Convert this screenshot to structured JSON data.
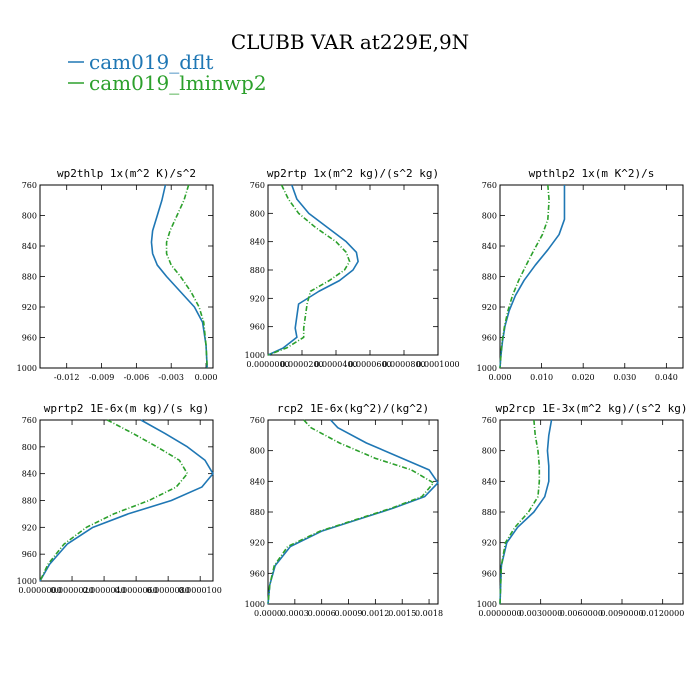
{
  "figure": {
    "title": "CLUBB VAR at229E,9N",
    "legend": [
      {
        "name": "cam019_dflt",
        "color": "#1f77b4"
      },
      {
        "name": "cam019_lminwp2",
        "color": "#2ca02c"
      }
    ]
  },
  "chart_data": [
    {
      "type": "line",
      "title": "wp2thlp  1x(m^2 K)/s^2",
      "xlim": [
        -0.0143,
        0.0006
      ],
      "ylim": [
        760,
        1000
      ],
      "xticks": [
        -0.012,
        -0.009,
        -0.006,
        -0.003,
        0.0
      ],
      "xtick_labels": [
        "-0.012",
        "-0.009",
        "-0.006",
        "-0.003",
        "0.000"
      ],
      "yticks": [
        760,
        800,
        840,
        880,
        920,
        960,
        1000
      ],
      "series": [
        {
          "name": "cam019_dflt",
          "color": "#1f77b4",
          "x": [
            -0.0035,
            -0.0038,
            -0.0042,
            -0.0046,
            -0.0047,
            -0.0046,
            -0.0042,
            -0.0034,
            -0.0022,
            -0.001,
            -0.0003,
            0.0,
            0.0001
          ],
          "y": [
            760,
            780,
            800,
            820,
            835,
            850,
            865,
            880,
            900,
            920,
            940,
            970,
            1000
          ]
        },
        {
          "name": "cam019_lminwp2",
          "color": "#2ca02c",
          "x": [
            -0.0015,
            -0.0019,
            -0.0025,
            -0.0031,
            -0.0034,
            -0.0034,
            -0.003,
            -0.0022,
            -0.0013,
            -0.0006,
            -0.0002,
            0.0,
            0.0001
          ],
          "y": [
            760,
            780,
            800,
            820,
            835,
            850,
            865,
            880,
            900,
            920,
            940,
            970,
            1000
          ]
        }
      ]
    },
    {
      "type": "line",
      "title": "wp2rtp  1x(m^2 kg)/(s^2 kg)",
      "xlim": [
        0,
        0.0001
      ],
      "ylim": [
        760,
        1000
      ],
      "xticks": [
        0,
        2e-05,
        4e-05,
        6e-05,
        8e-05,
        0.0001
      ],
      "xtick_labels": [
        "0.0000000",
        "0.0000200",
        "0.0000400",
        "0.0000600",
        "0.0000800",
        "0.0001000"
      ],
      "yticks": [
        760,
        800,
        840,
        880,
        920,
        960,
        1000
      ],
      "series": [
        {
          "name": "cam019_dflt",
          "color": "#1f77b4",
          "x": [
            1.4e-05,
            1.7e-05,
            2.4e-05,
            3.5e-05,
            4.6e-05,
            5.2e-05,
            5.3e-05,
            5e-05,
            4.2e-05,
            3e-05,
            1.8e-05,
            1.7e-05,
            1.6e-05,
            1.7e-05,
            9e-06,
            0.0
          ],
          "y": [
            760,
            780,
            800,
            820,
            840,
            855,
            868,
            880,
            895,
            910,
            928,
            945,
            962,
            975,
            990,
            1000
          ]
        },
        {
          "name": "cam019_lminwp2",
          "color": "#2ca02c",
          "x": [
            8e-06,
            1.2e-05,
            1.8e-05,
            2.8e-05,
            4e-05,
            4.6e-05,
            4.8e-05,
            4.5e-05,
            3.6e-05,
            2.5e-05,
            2.3e-05,
            2.2e-05,
            2.1e-05,
            2.1e-05,
            1.1e-05,
            0.0
          ],
          "y": [
            760,
            780,
            800,
            820,
            840,
            855,
            868,
            880,
            895,
            910,
            928,
            945,
            962,
            975,
            990,
            1000
          ]
        }
      ]
    },
    {
      "type": "line",
      "title": "wpthlp2  1x(m K^2)/s",
      "xlim": [
        0,
        0.044
      ],
      "ylim": [
        760,
        1000
      ],
      "xticks": [
        0,
        0.01,
        0.02,
        0.03,
        0.04
      ],
      "xtick_labels": [
        "0.000",
        "0.010",
        "0.020",
        "0.030",
        "0.040"
      ],
      "yticks": [
        760,
        800,
        840,
        880,
        920,
        960,
        1000
      ],
      "series": [
        {
          "name": "cam019_dflt",
          "color": "#1f77b4",
          "x": [
            0.0155,
            0.0155,
            0.0155,
            0.0142,
            0.0115,
            0.0085,
            0.0058,
            0.0037,
            0.0022,
            0.0012,
            0.0006,
            0.0002,
            0.0
          ],
          "y": [
            760,
            780,
            805,
            825,
            845,
            865,
            885,
            905,
            925,
            945,
            965,
            985,
            1000
          ]
        },
        {
          "name": "cam019_lminwp2",
          "color": "#2ca02c",
          "x": [
            0.0115,
            0.0118,
            0.0115,
            0.0102,
            0.0082,
            0.0063,
            0.0045,
            0.003,
            0.0019,
            0.0011,
            0.0005,
            0.0002,
            0.0
          ],
          "y": [
            760,
            780,
            805,
            825,
            845,
            865,
            885,
            905,
            925,
            945,
            965,
            985,
            1000
          ]
        }
      ]
    },
    {
      "type": "line",
      "title": "wprtp2  1E-6x(m kg)/(s kg)",
      "xlim": [
        0,
        1.08e-05
      ],
      "ylim": [
        760,
        1000
      ],
      "xticks": [
        0,
        2e-06,
        4e-06,
        6e-06,
        8e-06,
        1e-05
      ],
      "xtick_labels": [
        "0.0000000",
        "0.0000020",
        "0.0000040",
        "0.0000060",
        "0.0000080",
        "0.0000100"
      ],
      "yticks": [
        760,
        800,
        840,
        880,
        920,
        960,
        1000
      ],
      "series": [
        {
          "name": "cam019_dflt",
          "color": "#1f77b4",
          "x": [
            6.3e-06,
            7.8e-06,
            9.2e-06,
            1.03e-05,
            1.08e-05,
            1.01e-05,
            8.2e-06,
            5.5e-06,
            3.3e-06,
            1.7e-06,
            6e-07,
            0.0
          ],
          "y": [
            760,
            780,
            800,
            820,
            840,
            860,
            880,
            900,
            920,
            945,
            975,
            1000
          ]
        },
        {
          "name": "cam019_lminwp2",
          "color": "#2ca02c",
          "x": [
            4.2e-06,
            5.8e-06,
            7.3e-06,
            8.7e-06,
            9.2e-06,
            8.5e-06,
            6.8e-06,
            4.6e-06,
            2.9e-06,
            1.5e-06,
            5e-07,
            0.0
          ],
          "y": [
            760,
            780,
            800,
            820,
            840,
            860,
            880,
            900,
            920,
            945,
            975,
            1000
          ]
        }
      ]
    },
    {
      "type": "line",
      "title": "rcp2  1E-6x(kg^2)/(kg^2)",
      "xlim": [
        0,
        0.0019
      ],
      "ylim": [
        760,
        1000
      ],
      "xticks": [
        0,
        0.0003,
        0.0006,
        0.0009,
        0.0012,
        0.0015,
        0.0018
      ],
      "xtick_labels": [
        "0.0000",
        "0.0003",
        "0.0006",
        "0.0009",
        "0.0012",
        "0.0015",
        "0.0018"
      ],
      "yticks": [
        760,
        800,
        840,
        880,
        920,
        960,
        1000
      ],
      "series": [
        {
          "name": "cam019_dflt",
          "color": "#1f77b4",
          "x": [
            0.0007,
            0.00078,
            0.0011,
            0.0015,
            0.0018,
            0.0019,
            0.00175,
            0.0014,
            0.001,
            0.0006,
            0.00025,
            8e-05,
            2e-05,
            0.0
          ],
          "y": [
            760,
            770,
            790,
            810,
            825,
            842,
            860,
            875,
            890,
            905,
            925,
            950,
            975,
            1000
          ]
        },
        {
          "name": "cam019_lminwp2",
          "color": "#2ca02c",
          "x": [
            0.0004,
            0.00048,
            0.0008,
            0.0012,
            0.0016,
            0.00185,
            0.00172,
            0.00138,
            0.00098,
            0.00058,
            0.00022,
            7e-05,
            2e-05,
            0.0
          ],
          "y": [
            760,
            770,
            790,
            810,
            825,
            842,
            860,
            875,
            890,
            905,
            925,
            950,
            975,
            1000
          ]
        }
      ]
    },
    {
      "type": "line",
      "title": "wp2rcp  1E-3x(m^2 kg)/(s^2 kg)",
      "xlim": [
        0,
        0.0135
      ],
      "ylim": [
        760,
        1000
      ],
      "xticks": [
        0,
        0.003,
        0.006,
        0.009,
        0.012
      ],
      "xtick_labels": [
        "0.0000000",
        "0.0030000",
        "0.0060000",
        "0.0090000",
        "0.0120000"
      ],
      "yticks": [
        760,
        800,
        840,
        880,
        920,
        960,
        1000
      ],
      "series": [
        {
          "name": "cam019_dflt",
          "color": "#1f77b4",
          "x": [
            0.0038,
            0.0036,
            0.0035,
            0.0036,
            0.0036,
            0.0033,
            0.0025,
            0.0013,
            0.0005,
            0.0001,
            0.0
          ],
          "y": [
            760,
            780,
            800,
            820,
            840,
            860,
            880,
            900,
            920,
            950,
            1000
          ]
        },
        {
          "name": "cam019_lminwp2",
          "color": "#2ca02c",
          "x": [
            0.0025,
            0.0026,
            0.0028,
            0.0029,
            0.0029,
            0.0028,
            0.0021,
            0.0011,
            0.0004,
            0.0001,
            0.0
          ],
          "y": [
            760,
            780,
            800,
            820,
            840,
            860,
            880,
            900,
            920,
            950,
            1000
          ]
        }
      ]
    }
  ]
}
